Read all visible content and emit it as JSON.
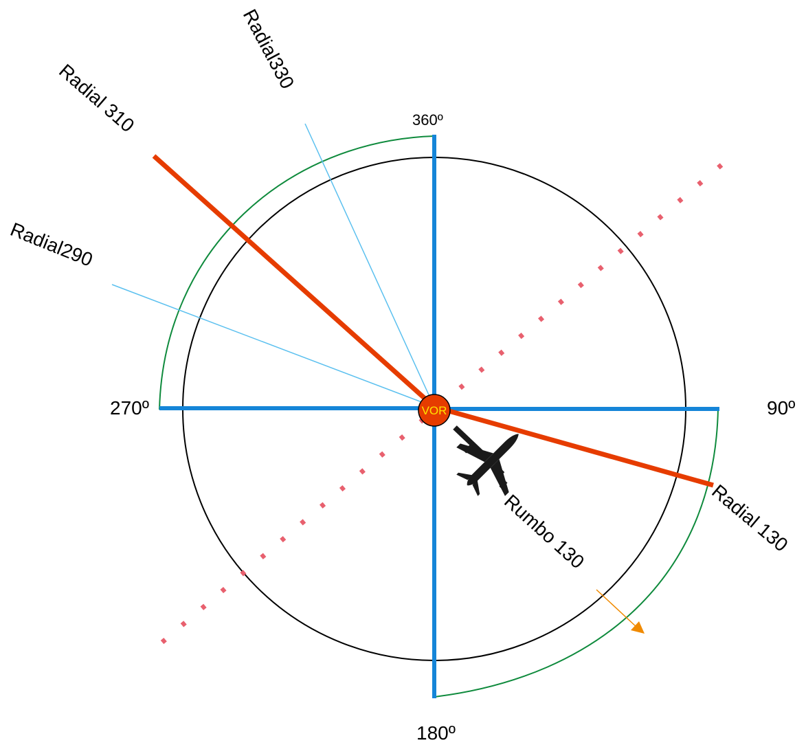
{
  "compass": {
    "north": "360º",
    "east": "90º",
    "south": "180º",
    "west": "270º"
  },
  "station": {
    "label": "VOR"
  },
  "radials": {
    "r310": "Radial 310",
    "r330": "Radial330",
    "r290": "Radial290",
    "r130": "Radial 130"
  },
  "heading": {
    "label": "Rumbo 130"
  },
  "colors": {
    "axis": "#1585d8",
    "radial_main": "#e63c00",
    "radial_thin": "#5bc0ef",
    "circle": "#000000",
    "arc": "#0e8a3c",
    "dotted": "#e8606e",
    "vor_fill": "#e63c00",
    "vor_text": "#ffe400",
    "heading_arrow": "#f08a00",
    "aircraft": "#1a1a1a"
  },
  "icons": {
    "aircraft": "airplane-icon"
  }
}
